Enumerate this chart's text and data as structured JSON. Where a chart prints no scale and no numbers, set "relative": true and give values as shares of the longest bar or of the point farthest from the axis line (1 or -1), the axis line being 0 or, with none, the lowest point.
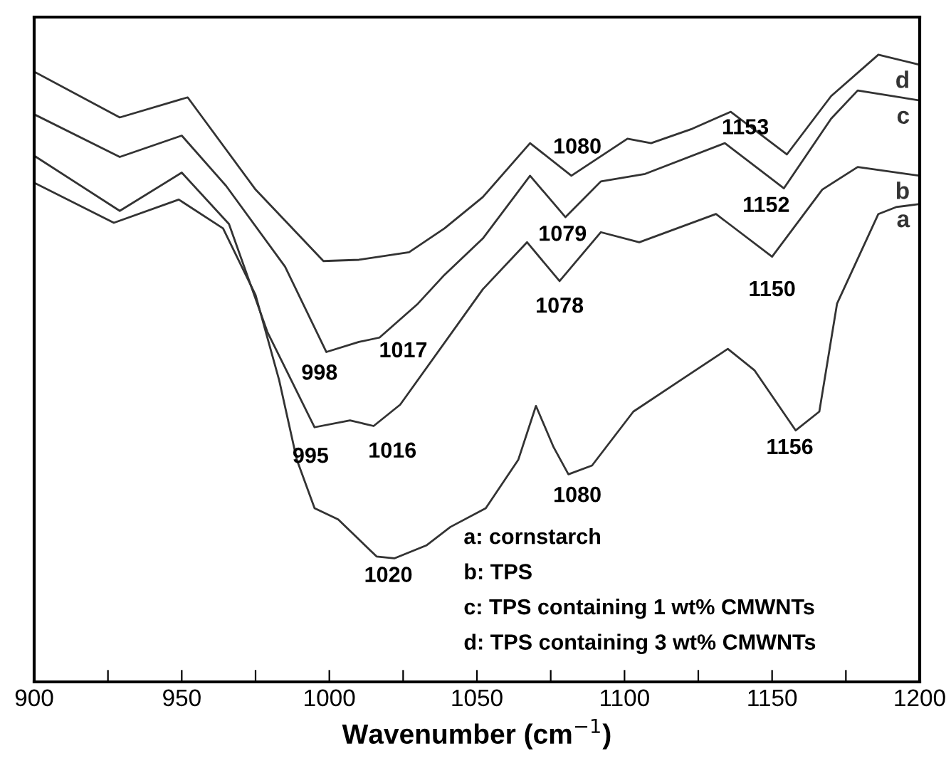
{
  "chart_data": {
    "type": "line",
    "relative": true,
    "xlabel": "Wavenumber (cm$^{−1}$)",
    "xlim": [
      900,
      1200
    ],
    "xticks": [
      900,
      {
        "value": 925,
        "label": null
      },
      950,
      {
        "value": 975,
        "label": null
      },
      1000,
      {
        "value": 1025,
        "label": null
      },
      1050,
      {
        "value": 1075,
        "label": null
      },
      1100,
      {
        "value": 1125,
        "label": null
      },
      1150,
      {
        "value": 1175,
        "label": null
      },
      1200
    ],
    "grid": false,
    "legend": false,
    "marker": "none",
    "line_style": "solid",
    "series": [
      {
        "name": "a",
        "color": "#333333",
        "x": [
          900,
          927,
          949,
          964,
          975,
          983,
          989,
          995,
          1003,
          1016,
          1022,
          1033,
          1041,
          1053,
          1064,
          1070,
          1076,
          1081,
          1089,
          1103,
          1119,
          1135,
          1144,
          1158,
          1166,
          1172,
          1186,
          1192,
          1200
        ],
        "values": [
          0.796,
          0.732,
          0.769,
          0.723,
          0.617,
          0.481,
          0.354,
          0.277,
          0.259,
          0.2,
          0.197,
          0.218,
          0.247,
          0.277,
          0.354,
          0.44,
          0.374,
          0.331,
          0.345,
          0.431,
          0.481,
          0.531,
          0.497,
          0.401,
          0.431,
          0.603,
          0.746,
          0.757,
          0.762
        ]
      },
      {
        "name": "b",
        "color": "#333333",
        "x": [
          900,
          929,
          950,
          966,
          979,
          995,
          1007,
          1015,
          1024,
          1052,
          1067,
          1078,
          1092,
          1105,
          1131,
          1150,
          1167,
          1179,
          1200
        ],
        "values": [
          0.839,
          0.751,
          0.812,
          0.73,
          0.558,
          0.406,
          0.417,
          0.408,
          0.442,
          0.626,
          0.701,
          0.639,
          0.717,
          0.701,
          0.746,
          0.678,
          0.785,
          0.821,
          0.807
        ]
      },
      {
        "name": "c",
        "color": "#333333",
        "x": [
          900,
          929,
          950,
          965,
          985,
          999,
          1010,
          1017,
          1030,
          1039,
          1052,
          1068,
          1080,
          1092,
          1107,
          1134,
          1154,
          1170,
          1179,
          1200
        ],
        "values": [
          0.905,
          0.837,
          0.871,
          0.791,
          0.662,
          0.526,
          0.542,
          0.549,
          0.603,
          0.649,
          0.707,
          0.807,
          0.741,
          0.798,
          0.81,
          0.859,
          0.787,
          0.898,
          0.943,
          0.927
        ]
      },
      {
        "name": "d",
        "color": "#333333",
        "x": [
          900,
          929,
          952,
          975,
          998,
          1010,
          1027,
          1039,
          1052,
          1068,
          1082,
          1101,
          1109,
          1123,
          1136,
          1155,
          1170,
          1186,
          1200
        ],
        "values": [
          0.973,
          0.9,
          0.932,
          0.785,
          0.671,
          0.673,
          0.685,
          0.723,
          0.773,
          0.859,
          0.807,
          0.866,
          0.859,
          0.882,
          0.909,
          0.841,
          0.934,
          1.0,
          0.984
        ]
      }
    ],
    "annotations": [
      {
        "text": "998",
        "x": 998,
        "y": 0.526
      },
      {
        "text": "1017",
        "x": 1017,
        "y": 0.549
      },
      {
        "text": "995",
        "x": 995,
        "y": 0.406
      },
      {
        "text": "1016",
        "x": 1016,
        "y": 0.408
      },
      {
        "text": "1020",
        "x": 1020,
        "y": 0.197
      },
      {
        "text": "1078",
        "x": 1078,
        "y": 0.639
      },
      {
        "text": "1079",
        "x": 1079,
        "y": 0.741
      },
      {
        "text": "1080",
        "x": 1080,
        "y": 0.807
      },
      {
        "text": "1080",
        "x": 1080,
        "y": 0.331
      },
      {
        "text": "1150",
        "x": 1150,
        "y": 0.678
      },
      {
        "text": "1152",
        "x": 1152,
        "y": 0.787
      },
      {
        "text": "1153",
        "x": 1153,
        "y": 0.841
      },
      {
        "text": "1156",
        "x": 1156,
        "y": 0.401
      },
      "a: cornstarch",
      "b: TPS",
      "c: TPS containing 1 wt% CMWNTs",
      "d: TPS containing 3 wt% CMWNTs"
    ]
  }
}
